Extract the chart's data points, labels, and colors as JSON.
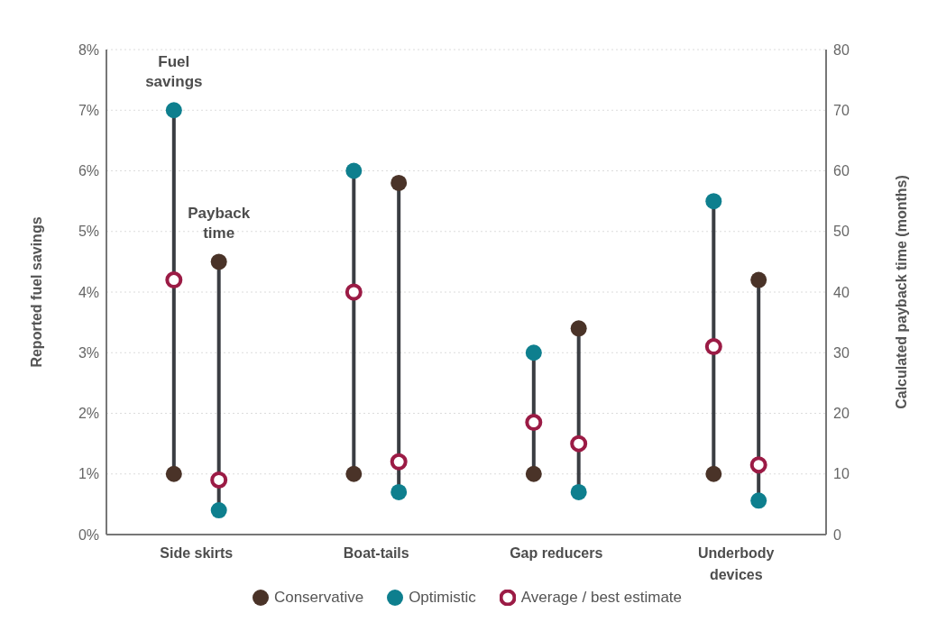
{
  "chart_data": {
    "type": "scatter",
    "categories": [
      "Side skirts",
      "Boat-tails",
      "Gap reducers",
      "Underbody devices"
    ],
    "ylabel": "Reported fuel savings",
    "y2label": "Calculated payback time (months)",
    "ylim": [
      0,
      8
    ],
    "yticks": [
      {
        "value": 0,
        "label": "0%"
      },
      {
        "value": 1,
        "label": "1%"
      },
      {
        "value": 2,
        "label": "2%"
      },
      {
        "value": 3,
        "label": "3%"
      },
      {
        "value": 4,
        "label": "4%"
      },
      {
        "value": 5,
        "label": "5%"
      },
      {
        "value": 6,
        "label": "6%"
      },
      {
        "value": 7,
        "label": "7%"
      },
      {
        "value": 8,
        "label": "8%"
      }
    ],
    "y2lim": [
      0,
      80
    ],
    "y2ticks": [
      0,
      10,
      20,
      30,
      40,
      50,
      60,
      70,
      80
    ],
    "series": [
      {
        "name": "Conservative",
        "color": "#4a3328",
        "values": [
          1,
          1,
          1,
          1
        ]
      },
      {
        "name": "Optimistic",
        "color": "#0e7f8e",
        "values": [
          7,
          6,
          3,
          5.5
        ]
      },
      {
        "name": "Average / best estimate",
        "color": "#9b1b45",
        "values": [
          4.2,
          4,
          1.85,
          3.1
        ]
      },
      {
        "color": "#4a3328",
        "axis": "y2",
        "values": [
          45,
          58,
          34,
          42
        ]
      },
      {
        "color": "#0e7f8e",
        "axis": "y2",
        "values": [
          4,
          7,
          7,
          5.6
        ]
      },
      {
        "color": "#9b1b45",
        "axis": "y2",
        "values": [
          9,
          12,
          15,
          11.5
        ]
      }
    ],
    "annotations": [
      "Fuel savings",
      "Payback time"
    ],
    "marker": "circle",
    "grid": "y",
    "legend": "bottom"
  }
}
